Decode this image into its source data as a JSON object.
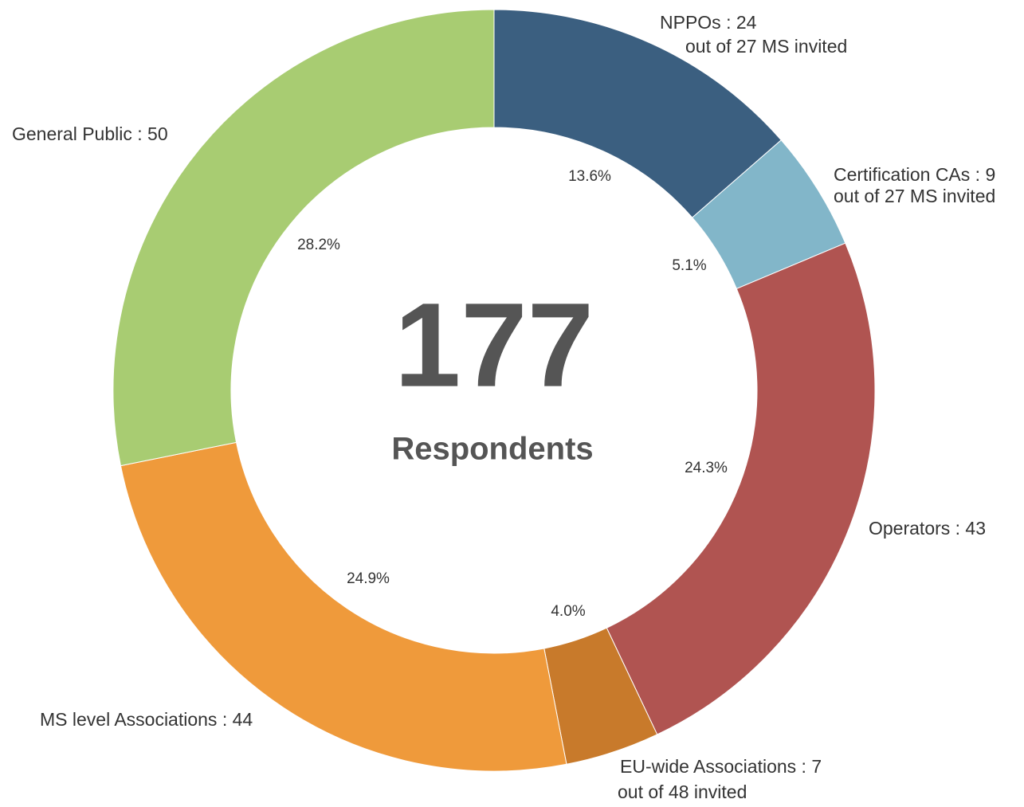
{
  "chart_data": {
    "type": "donut",
    "categories": [
      "NPPOs : 24",
      "Certification CAs : 9",
      "Operators : 43",
      "EU-wide Associations : 7",
      "MS level Associations : 44",
      "General Public : 50"
    ],
    "sublabels": [
      "out of 27 MS invited",
      "out of 27 MS invited",
      null,
      "out of 48 invited",
      null,
      null
    ],
    "values": [
      13.6,
      5.1,
      24.3,
      4.0,
      24.9,
      28.2
    ],
    "value_labels": [
      "13.6%",
      "5.1%",
      "24.3%",
      "4.0%",
      "24.9%",
      "28.2%"
    ],
    "colors": [
      "#3b5f80",
      "#82b6c9",
      "#b05451",
      "#c87a2b",
      "#ef9a3b",
      "#a8cc72"
    ],
    "center_value": 177,
    "center_label": "Respondents"
  }
}
